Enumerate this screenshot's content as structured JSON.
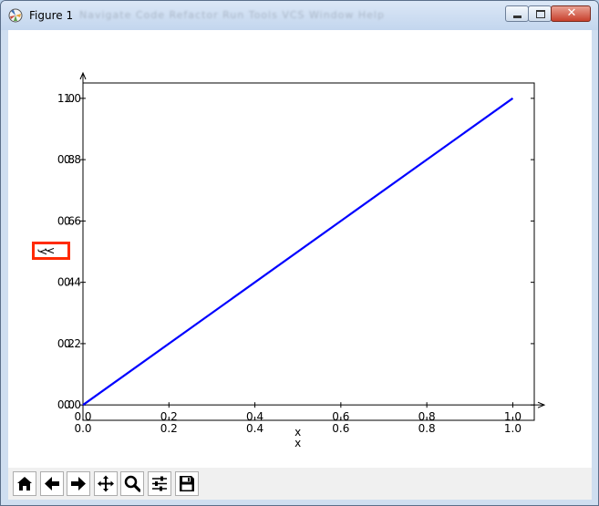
{
  "window": {
    "title": "Figure 1",
    "ghost_menu": "Navigate  Code  Refactor  Run  Tools  VCS  Window  Help",
    "close_glyph": "✕"
  },
  "chart_data": {
    "type": "line",
    "title": "",
    "xlabel": "x",
    "ylabel": "y",
    "xlim": [
      0.0,
      1.05
    ],
    "ylim": [
      -0.05,
      1.05
    ],
    "x_ticks": [
      "0.0",
      "0.2",
      "0.4",
      "0.6",
      "0.8",
      "1.0"
    ],
    "y_ticks": [
      "0.0",
      "0.2",
      "0.4",
      "0.6",
      "0.8",
      "1.0"
    ],
    "series": [
      {
        "x": [
          0.0,
          1.0
        ],
        "y": [
          0.0,
          1.0
        ],
        "color": "#0000ff"
      }
    ],
    "grid": false,
    "legend": "none"
  },
  "toolbar": {
    "buttons": [
      {
        "name": "home-button",
        "icon": "home-icon"
      },
      {
        "name": "back-button",
        "icon": "arrow-left-icon"
      },
      {
        "name": "forward-button",
        "icon": "arrow-right-icon"
      },
      {
        "name": "pan-button",
        "icon": "move-icon"
      },
      {
        "name": "zoom-button",
        "icon": "magnifier-icon"
      },
      {
        "name": "subplots-button",
        "icon": "sliders-icon"
      },
      {
        "name": "save-button",
        "icon": "save-icon"
      }
    ]
  }
}
